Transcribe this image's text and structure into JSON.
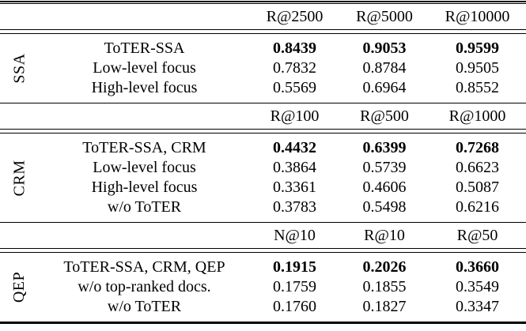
{
  "table": {
    "sections": [
      {
        "group": "SSA",
        "headers": [
          "R@2500",
          "R@5000",
          "R@10000"
        ],
        "rows": [
          {
            "label": "ToTER-SSA",
            "values": [
              "0.8439",
              "0.9053",
              "0.9599"
            ]
          },
          {
            "label": "Low-level focus",
            "values": [
              "0.7832",
              "0.8784",
              "0.9505"
            ]
          },
          {
            "label": "High-level focus",
            "values": [
              "0.5569",
              "0.6964",
              "0.8552"
            ]
          }
        ]
      },
      {
        "group": "CRM",
        "headers": [
          "R@100",
          "R@500",
          "R@1000"
        ],
        "rows": [
          {
            "label": "ToTER-SSA, CRM",
            "values": [
              "0.4432",
              "0.6399",
              "0.7268"
            ]
          },
          {
            "label": "Low-level focus",
            "values": [
              "0.3864",
              "0.5739",
              "0.6623"
            ]
          },
          {
            "label": "High-level focus",
            "values": [
              "0.3361",
              "0.4606",
              "0.5087"
            ]
          },
          {
            "label": "w/o ToTER",
            "values": [
              "0.3783",
              "0.5498",
              "0.6216"
            ]
          }
        ]
      },
      {
        "group": "QEP",
        "headers": [
          "N@10",
          "R@10",
          "R@50"
        ],
        "rows": [
          {
            "label": "ToTER-SSA, CRM, QEP",
            "values": [
              "0.1915",
              "0.2026",
              "0.3660"
            ]
          },
          {
            "label": "w/o top-ranked docs.",
            "values": [
              "0.1759",
              "0.1855",
              "0.3549"
            ]
          },
          {
            "label": "w/o ToTER",
            "values": [
              "0.1760",
              "0.1827",
              "0.3347"
            ]
          }
        ]
      }
    ],
    "text_color": "#000000",
    "background_color": "#ffffff"
  }
}
